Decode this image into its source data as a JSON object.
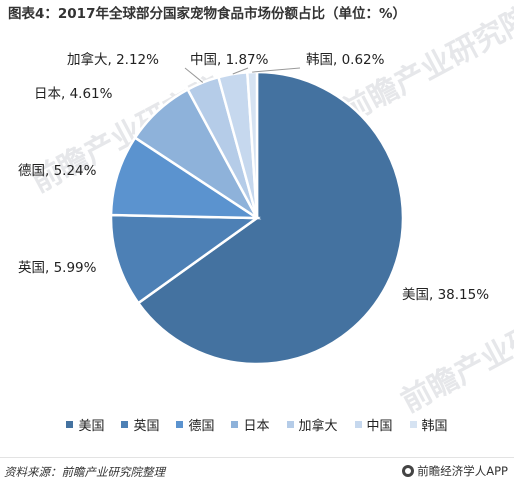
{
  "title": "图表4：2017年全球部分国家宠物食品市场份额占比（单位：%）",
  "chart_data": {
    "type": "pie",
    "title": "图表4：2017年全球部分国家宠物食品市场份额占比（单位：%）",
    "slices": [
      {
        "name": "美国",
        "value": 38.15,
        "label": "美国, 38.15%",
        "color": "#4472a0"
      },
      {
        "name": "英国",
        "value": 5.99,
        "label": "英国, 5.99%",
        "color": "#4d80b5"
      },
      {
        "name": "德国",
        "value": 5.24,
        "label": "德国, 5.24%",
        "color": "#5b93cf"
      },
      {
        "name": "日本",
        "value": 4.61,
        "label": "日本, 4.61%",
        "color": "#8eb2da"
      },
      {
        "name": "加拿大",
        "value": 2.12,
        "label": "加拿大, 2.12%",
        "color": "#b5cce8"
      },
      {
        "name": "中国",
        "value": 1.87,
        "label": "中国, 1.87%",
        "color": "#c6d8ee"
      },
      {
        "name": "韩国",
        "value": 0.62,
        "label": "韩国, 0.62%",
        "color": "#d6e3f2"
      }
    ],
    "legend_position": "bottom"
  },
  "watermark": "前瞻产业研究院",
  "footer": {
    "source": "资料来源：前瞻产业研究院整理",
    "brand": "前瞻经济学人APP"
  }
}
